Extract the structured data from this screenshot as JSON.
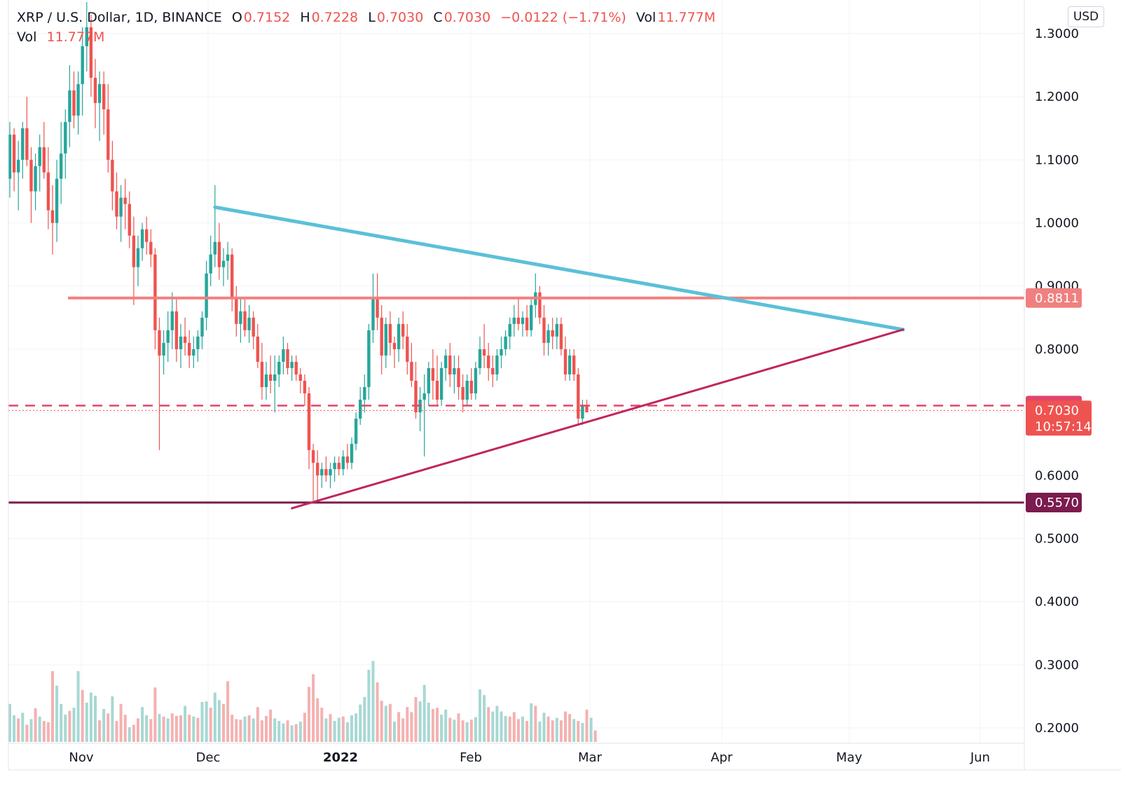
{
  "legend": {
    "symbol": "XRP / U.S. Dollar, 1D, BINANCE",
    "o_label": "O",
    "o_value": "0.7152",
    "h_label": "H",
    "h_value": "0.7228",
    "l_label": "L",
    "l_value": "0.7030",
    "c_label": "C",
    "c_value": "0.7030",
    "change": "−0.0122 (−1.71%)",
    "vol_label": "Vol",
    "vol_value": "11.777M"
  },
  "currency": "USD",
  "colors": {
    "up": "#26a69a",
    "down": "#ef5350",
    "vol_up": "#a7d8d3",
    "vol_down": "#f5b1b1",
    "upper_trendline": "#5bc0d8",
    "lower_trendline": "#c2255c",
    "resistance": "#f08080",
    "support": "#7b1b4e",
    "dashed_level": "#e0456a",
    "grid": "#f0f3fa"
  },
  "chart_data": {
    "type": "candlestick",
    "ylim": [
      0.17,
      1.33
    ],
    "y_ticks": [
      "0.2000",
      "0.3000",
      "0.4000",
      "0.5000",
      "0.6000",
      "0.7000",
      "0.8000",
      "0.9000",
      "1.0000",
      "1.1000",
      "1.2000",
      "1.3000"
    ],
    "x_ticks": [
      "Nov",
      "Dec",
      "2022",
      "Feb",
      "Mar",
      "Apr",
      "May",
      "Jun"
    ],
    "ohlc": [
      [
        1.07,
        1.16,
        1.04,
        1.14
      ],
      [
        1.14,
        1.15,
        1.05,
        1.08
      ],
      [
        1.08,
        1.13,
        1.02,
        1.1
      ],
      [
        1.1,
        1.16,
        1.07,
        1.15
      ],
      [
        1.15,
        1.2,
        1.09,
        1.1
      ],
      [
        1.1,
        1.12,
        1.0,
        1.05
      ],
      [
        1.05,
        1.11,
        1.02,
        1.09
      ],
      [
        1.09,
        1.14,
        1.05,
        1.12
      ],
      [
        1.12,
        1.16,
        1.07,
        1.08
      ],
      [
        1.08,
        1.12,
        0.99,
        1.02
      ],
      [
        1.02,
        1.06,
        0.95,
        1.0
      ],
      [
        1.0,
        1.1,
        0.97,
        1.07
      ],
      [
        1.07,
        1.16,
        1.03,
        1.11
      ],
      [
        1.11,
        1.18,
        1.07,
        1.16
      ],
      [
        1.16,
        1.25,
        1.12,
        1.21
      ],
      [
        1.21,
        1.24,
        1.15,
        1.17
      ],
      [
        1.17,
        1.24,
        1.14,
        1.22
      ],
      [
        1.22,
        1.31,
        1.17,
        1.28
      ],
      [
        1.28,
        1.35,
        1.24,
        1.31
      ],
      [
        1.31,
        1.33,
        1.2,
        1.23
      ],
      [
        1.23,
        1.26,
        1.15,
        1.19
      ],
      [
        1.19,
        1.24,
        1.13,
        1.22
      ],
      [
        1.22,
        1.24,
        1.14,
        1.18
      ],
      [
        1.18,
        1.22,
        1.08,
        1.1
      ],
      [
        1.1,
        1.13,
        1.02,
        1.05
      ],
      [
        1.05,
        1.08,
        0.99,
        1.01
      ],
      [
        1.01,
        1.06,
        0.97,
        1.04
      ],
      [
        1.04,
        1.07,
        0.99,
        1.03
      ],
      [
        1.03,
        1.05,
        0.96,
        0.98
      ],
      [
        0.98,
        1.01,
        0.87,
        0.93
      ],
      [
        0.93,
        0.98,
        0.9,
        0.96
      ],
      [
        0.96,
        1.0,
        0.94,
        0.99
      ],
      [
        0.99,
        1.01,
        0.95,
        0.97
      ],
      [
        0.97,
        0.99,
        0.93,
        0.95
      ],
      [
        0.95,
        0.96,
        0.8,
        0.83
      ],
      [
        0.83,
        0.85,
        0.64,
        0.79
      ],
      [
        0.79,
        0.83,
        0.76,
        0.81
      ],
      [
        0.81,
        0.86,
        0.78,
        0.83
      ],
      [
        0.83,
        0.89,
        0.8,
        0.86
      ],
      [
        0.86,
        0.88,
        0.78,
        0.8
      ],
      [
        0.8,
        0.84,
        0.77,
        0.82
      ],
      [
        0.82,
        0.85,
        0.79,
        0.81
      ],
      [
        0.81,
        0.83,
        0.77,
        0.79
      ],
      [
        0.79,
        0.82,
        0.77,
        0.8
      ],
      [
        0.8,
        0.83,
        0.78,
        0.82
      ],
      [
        0.82,
        0.86,
        0.8,
        0.85
      ],
      [
        0.85,
        0.94,
        0.83,
        0.92
      ],
      [
        0.92,
        0.98,
        0.9,
        0.95
      ],
      [
        0.95,
        1.06,
        0.93,
        0.97
      ],
      [
        0.97,
        1.0,
        0.91,
        0.93
      ],
      [
        0.93,
        0.96,
        0.9,
        0.94
      ],
      [
        0.94,
        0.97,
        0.91,
        0.95
      ],
      [
        0.95,
        0.96,
        0.86,
        0.88
      ],
      [
        0.88,
        0.9,
        0.82,
        0.84
      ],
      [
        0.84,
        0.88,
        0.81,
        0.86
      ],
      [
        0.86,
        0.88,
        0.82,
        0.83
      ],
      [
        0.83,
        0.87,
        0.81,
        0.85
      ],
      [
        0.85,
        0.86,
        0.8,
        0.82
      ],
      [
        0.82,
        0.84,
        0.77,
        0.78
      ],
      [
        0.78,
        0.81,
        0.72,
        0.74
      ],
      [
        0.74,
        0.78,
        0.72,
        0.76
      ],
      [
        0.76,
        0.79,
        0.73,
        0.75
      ],
      [
        0.75,
        0.79,
        0.7,
        0.76
      ],
      [
        0.76,
        0.79,
        0.74,
        0.78
      ],
      [
        0.78,
        0.82,
        0.76,
        0.8
      ],
      [
        0.8,
        0.81,
        0.76,
        0.77
      ],
      [
        0.77,
        0.79,
        0.75,
        0.78
      ],
      [
        0.78,
        0.79,
        0.75,
        0.76
      ],
      [
        0.76,
        0.77,
        0.73,
        0.75
      ],
      [
        0.75,
        0.76,
        0.71,
        0.73
      ],
      [
        0.73,
        0.74,
        0.61,
        0.64
      ],
      [
        0.64,
        0.65,
        0.56,
        0.62
      ],
      [
        0.62,
        0.64,
        0.56,
        0.6
      ],
      [
        0.6,
        0.62,
        0.58,
        0.61
      ],
      [
        0.61,
        0.63,
        0.59,
        0.6
      ],
      [
        0.6,
        0.62,
        0.58,
        0.61
      ],
      [
        0.61,
        0.63,
        0.59,
        0.62
      ],
      [
        0.62,
        0.63,
        0.6,
        0.61
      ],
      [
        0.61,
        0.64,
        0.6,
        0.63
      ],
      [
        0.63,
        0.65,
        0.61,
        0.62
      ],
      [
        0.62,
        0.66,
        0.61,
        0.65
      ],
      [
        0.65,
        0.7,
        0.64,
        0.69
      ],
      [
        0.69,
        0.74,
        0.68,
        0.72
      ],
      [
        0.72,
        0.76,
        0.7,
        0.74
      ],
      [
        0.74,
        0.84,
        0.72,
        0.83
      ],
      [
        0.83,
        0.92,
        0.81,
        0.88
      ],
      [
        0.88,
        0.92,
        0.83,
        0.85
      ],
      [
        0.85,
        0.87,
        0.76,
        0.79
      ],
      [
        0.79,
        0.85,
        0.77,
        0.84
      ],
      [
        0.84,
        0.86,
        0.79,
        0.81
      ],
      [
        0.81,
        0.82,
        0.77,
        0.8
      ],
      [
        0.8,
        0.85,
        0.78,
        0.84
      ],
      [
        0.84,
        0.86,
        0.8,
        0.82
      ],
      [
        0.82,
        0.84,
        0.76,
        0.78
      ],
      [
        0.78,
        0.81,
        0.74,
        0.75
      ],
      [
        0.75,
        0.78,
        0.69,
        0.7
      ],
      [
        0.7,
        0.74,
        0.67,
        0.72
      ],
      [
        0.72,
        0.76,
        0.63,
        0.73
      ],
      [
        0.73,
        0.78,
        0.71,
        0.77
      ],
      [
        0.77,
        0.8,
        0.72,
        0.75
      ],
      [
        0.75,
        0.79,
        0.71,
        0.72
      ],
      [
        0.72,
        0.78,
        0.71,
        0.77
      ],
      [
        0.77,
        0.8,
        0.75,
        0.79
      ],
      [
        0.79,
        0.81,
        0.74,
        0.76
      ],
      [
        0.76,
        0.79,
        0.73,
        0.77
      ],
      [
        0.77,
        0.79,
        0.72,
        0.74
      ],
      [
        0.74,
        0.76,
        0.7,
        0.72
      ],
      [
        0.72,
        0.76,
        0.71,
        0.75
      ],
      [
        0.75,
        0.77,
        0.72,
        0.73
      ],
      [
        0.73,
        0.78,
        0.72,
        0.77
      ],
      [
        0.77,
        0.82,
        0.76,
        0.8
      ],
      [
        0.8,
        0.84,
        0.77,
        0.79
      ],
      [
        0.79,
        0.81,
        0.75,
        0.77
      ],
      [
        0.77,
        0.79,
        0.74,
        0.76
      ],
      [
        0.76,
        0.8,
        0.75,
        0.79
      ],
      [
        0.79,
        0.82,
        0.77,
        0.8
      ],
      [
        0.8,
        0.83,
        0.79,
        0.82
      ],
      [
        0.82,
        0.85,
        0.8,
        0.84
      ],
      [
        0.84,
        0.87,
        0.82,
        0.85
      ],
      [
        0.85,
        0.88,
        0.83,
        0.84
      ],
      [
        0.84,
        0.86,
        0.82,
        0.85
      ],
      [
        0.85,
        0.87,
        0.82,
        0.83
      ],
      [
        0.83,
        0.88,
        0.82,
        0.87
      ],
      [
        0.87,
        0.92,
        0.85,
        0.89
      ],
      [
        0.89,
        0.9,
        0.84,
        0.85
      ],
      [
        0.85,
        0.87,
        0.79,
        0.81
      ],
      [
        0.81,
        0.84,
        0.79,
        0.83
      ],
      [
        0.83,
        0.85,
        0.8,
        0.82
      ],
      [
        0.82,
        0.85,
        0.8,
        0.84
      ],
      [
        0.84,
        0.85,
        0.79,
        0.8
      ],
      [
        0.8,
        0.82,
        0.75,
        0.76
      ],
      [
        0.76,
        0.8,
        0.75,
        0.79
      ],
      [
        0.79,
        0.8,
        0.75,
        0.76
      ],
      [
        0.76,
        0.77,
        0.68,
        0.69
      ],
      [
        0.69,
        0.72,
        0.68,
        0.71
      ],
      [
        0.71,
        0.72,
        0.7,
        0.7
      ]
    ],
    "volume": [
      [
        0.238,
        1
      ],
      [
        0.22,
        1
      ],
      [
        0.215,
        0
      ],
      [
        0.224,
        1
      ],
      [
        0.205,
        0
      ],
      [
        0.214,
        1
      ],
      [
        0.231,
        0
      ],
      [
        0.218,
        1
      ],
      [
        0.211,
        0
      ],
      [
        0.209,
        0
      ],
      [
        0.29,
        0
      ],
      [
        0.267,
        1
      ],
      [
        0.238,
        1
      ],
      [
        0.221,
        1
      ],
      [
        0.227,
        0
      ],
      [
        0.232,
        1
      ],
      [
        0.29,
        1
      ],
      [
        0.26,
        0
      ],
      [
        0.24,
        1
      ],
      [
        0.256,
        1
      ],
      [
        0.251,
        1
      ],
      [
        0.212,
        0
      ],
      [
        0.23,
        1
      ],
      [
        0.223,
        0
      ],
      [
        0.25,
        1
      ],
      [
        0.211,
        0
      ],
      [
        0.238,
        0
      ],
      [
        0.221,
        0
      ],
      [
        0.201,
        1
      ],
      [
        0.205,
        0
      ],
      [
        0.215,
        0
      ],
      [
        0.233,
        1
      ],
      [
        0.22,
        1
      ],
      [
        0.214,
        0
      ],
      [
        0.264,
        0
      ],
      [
        0.222,
        1
      ],
      [
        0.218,
        0
      ],
      [
        0.215,
        1
      ],
      [
        0.223,
        0
      ],
      [
        0.219,
        0
      ],
      [
        0.22,
        0
      ],
      [
        0.235,
        1
      ],
      [
        0.221,
        0
      ],
      [
        0.218,
        1
      ],
      [
        0.216,
        0
      ],
      [
        0.241,
        1
      ],
      [
        0.242,
        1
      ],
      [
        0.232,
        0
      ],
      [
        0.256,
        1
      ],
      [
        0.244,
        1
      ],
      [
        0.238,
        0
      ],
      [
        0.274,
        0
      ],
      [
        0.221,
        0
      ],
      [
        0.214,
        0
      ],
      [
        0.213,
        0
      ],
      [
        0.218,
        1
      ],
      [
        0.22,
        0
      ],
      [
        0.215,
        1
      ],
      [
        0.233,
        0
      ],
      [
        0.212,
        0
      ],
      [
        0.219,
        0
      ],
      [
        0.229,
        0
      ],
      [
        0.215,
        1
      ],
      [
        0.211,
        1
      ],
      [
        0.207,
        1
      ],
      [
        0.212,
        0
      ],
      [
        0.204,
        1
      ],
      [
        0.206,
        0
      ],
      [
        0.21,
        1
      ],
      [
        0.224,
        0
      ],
      [
        0.265,
        0
      ],
      [
        0.285,
        0
      ],
      [
        0.247,
        0
      ],
      [
        0.232,
        0
      ],
      [
        0.215,
        1
      ],
      [
        0.222,
        0
      ],
      [
        0.211,
        1
      ],
      [
        0.216,
        1
      ],
      [
        0.218,
        0
      ],
      [
        0.209,
        1
      ],
      [
        0.22,
        1
      ],
      [
        0.223,
        1
      ],
      [
        0.237,
        1
      ],
      [
        0.249,
        1
      ],
      [
        0.292,
        1
      ],
      [
        0.306,
        1
      ],
      [
        0.272,
        0
      ],
      [
        0.243,
        0
      ],
      [
        0.235,
        1
      ],
      [
        0.238,
        0
      ],
      [
        0.21,
        1
      ],
      [
        0.225,
        0
      ],
      [
        0.215,
        0
      ],
      [
        0.233,
        0
      ],
      [
        0.225,
        0
      ],
      [
        0.249,
        0
      ],
      [
        0.242,
        1
      ],
      [
        0.268,
        1
      ],
      [
        0.24,
        1
      ],
      [
        0.23,
        0
      ],
      [
        0.232,
        0
      ],
      [
        0.221,
        1
      ],
      [
        0.229,
        1
      ],
      [
        0.216,
        0
      ],
      [
        0.213,
        1
      ],
      [
        0.223,
        0
      ],
      [
        0.212,
        0
      ],
      [
        0.209,
        1
      ],
      [
        0.213,
        0
      ],
      [
        0.217,
        1
      ],
      [
        0.261,
        1
      ],
      [
        0.252,
        1
      ],
      [
        0.233,
        0
      ],
      [
        0.226,
        1
      ],
      [
        0.235,
        1
      ],
      [
        0.226,
        1
      ],
      [
        0.219,
        1
      ],
      [
        0.218,
        0
      ],
      [
        0.225,
        0
      ],
      [
        0.214,
        0
      ],
      [
        0.218,
        1
      ],
      [
        0.211,
        0
      ],
      [
        0.239,
        1
      ],
      [
        0.235,
        0
      ],
      [
        0.21,
        1
      ],
      [
        0.224,
        1
      ],
      [
        0.218,
        0
      ],
      [
        0.212,
        0
      ],
      [
        0.216,
        1
      ],
      [
        0.212,
        0
      ],
      [
        0.226,
        0
      ],
      [
        0.222,
        0
      ],
      [
        0.214,
        1
      ],
      [
        0.211,
        0
      ],
      [
        0.208,
        1
      ],
      [
        0.229,
        0
      ],
      [
        0.216,
        1
      ],
      [
        0.196,
        0
      ]
    ],
    "price_levels": [
      {
        "label": "0.8811",
        "value": 0.8811,
        "style": "resistance"
      },
      {
        "label": "0.7107",
        "value": 0.7107,
        "style": "dashed"
      },
      {
        "label": "0.5570",
        "value": 0.557,
        "style": "support"
      }
    ],
    "current_price": {
      "label": "0.7030",
      "value": 0.703,
      "countdown": "10:57:14"
    },
    "trendlines": [
      {
        "name": "",
        "style": "upper",
        "from": [
          48,
          1.025
        ],
        "to": [
          209,
          0.831
        ]
      },
      {
        "name": "",
        "style": "lower",
        "from": [
          66,
          0.548
        ],
        "to": [
          209,
          0.831
        ]
      }
    ]
  }
}
